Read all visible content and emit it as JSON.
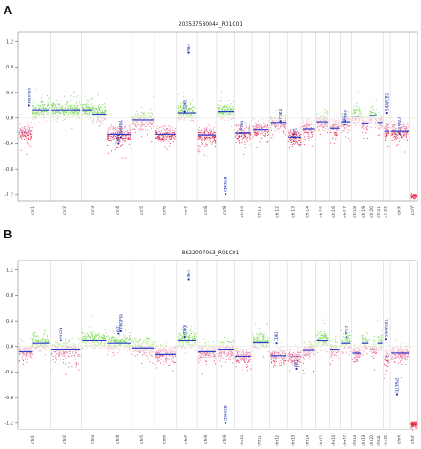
{
  "chart_data": [
    {
      "panel_letter": "A",
      "title": "203537580044_R01C01",
      "type": "scatter",
      "ylim": [
        -1.3,
        1.35
      ],
      "yticks": [
        "1.2",
        "0.8",
        "0.4",
        "0.0",
        "-0.4",
        "-0.8",
        "-1.2"
      ],
      "ytick_values": [
        1.2,
        0.8,
        0.4,
        0.0,
        -0.4,
        -0.8,
        -1.2
      ],
      "chromosomes": [
        "chr1",
        "chr2",
        "chr3",
        "chr4",
        "chr5",
        "chr6",
        "chr7",
        "chr8",
        "chr9",
        "chr10",
        "chr11",
        "chr12",
        "chr13",
        "chr14",
        "chr15",
        "chr16",
        "chr17",
        "chr18",
        "chr19",
        "chr20",
        "chr21",
        "chr22",
        "chrX",
        "chrY"
      ],
      "segments": [
        {
          "chr": "chr1",
          "part": "p",
          "value": -0.22
        },
        {
          "chr": "chr1",
          "part": "q",
          "value": 0.12
        },
        {
          "chr": "chr2",
          "value": 0.12
        },
        {
          "chr": "chr3",
          "part": "p",
          "value": 0.12
        },
        {
          "chr": "chr3",
          "part": "q",
          "value": 0.06
        },
        {
          "chr": "chr4",
          "value": -0.26
        },
        {
          "chr": "chr5",
          "value": -0.03
        },
        {
          "chr": "chr6",
          "value": -0.26
        },
        {
          "chr": "chr7",
          "value": 0.08
        },
        {
          "chr": "chr8",
          "value": -0.27
        },
        {
          "chr": "chr9",
          "value": 0.1
        },
        {
          "chr": "chr10",
          "value": -0.24
        },
        {
          "chr": "chr11",
          "value": -0.18
        },
        {
          "chr": "chr12",
          "value": -0.07
        },
        {
          "chr": "chr13",
          "value": -0.3
        },
        {
          "chr": "chr14",
          "value": -0.17
        },
        {
          "chr": "chr15",
          "value": -0.06
        },
        {
          "chr": "chr16",
          "value": -0.16
        },
        {
          "chr": "chr17",
          "value": -0.06
        },
        {
          "chr": "chr18",
          "value": 0.03
        },
        {
          "chr": "chr19",
          "value": -0.08
        },
        {
          "chr": "chr20",
          "value": 0.04
        },
        {
          "chr": "chr21",
          "value": -0.07
        },
        {
          "chr": "chr22",
          "value": -0.2
        },
        {
          "chr": "chrX",
          "value": -0.2
        },
        {
          "chr": "chrY",
          "value": -1.22
        }
      ],
      "gene_labels": [
        {
          "label": "PRDM16",
          "chr": "chr1",
          "value": 0.2
        },
        {
          "label": "PDGFRA",
          "chr": "chr4",
          "value": -0.3
        },
        {
          "label": "MYB",
          "chr": "chr4",
          "value": -0.4
        },
        {
          "label": "CDK6",
          "chr": "chr7",
          "value": 0.1
        },
        {
          "label": "MET",
          "chr": "chr7",
          "value": 1.02
        },
        {
          "label": "CDKN2B",
          "chr": "chr9",
          "value": -1.19
        },
        {
          "label": "PTEN",
          "chr": "chr10",
          "value": -0.22
        },
        {
          "label": "CDK4",
          "chr": "chr12",
          "value": -0.05
        },
        {
          "label": "RB1",
          "chr": "chr13",
          "value": -0.3
        },
        {
          "label": "TP53",
          "chr": "chr17",
          "value": -0.05
        },
        {
          "label": "NF1",
          "chr": "chr17",
          "value": -0.1
        },
        {
          "label": "SMARCB1",
          "chr": "chr22",
          "value": 0.08
        },
        {
          "label": "IL13RA2",
          "chr": "chrX",
          "value": -0.25
        }
      ]
    },
    {
      "panel_letter": "B",
      "title": "8622007063_R01C01",
      "type": "scatter",
      "ylim": [
        -1.3,
        1.35
      ],
      "yticks": [
        "1.2",
        "0.8",
        "0.4",
        "0.0",
        "-0.4",
        "-0.8",
        "-1.2"
      ],
      "ytick_values": [
        1.2,
        0.8,
        0.4,
        0.0,
        -0.4,
        -0.8,
        -1.2
      ],
      "chromosomes": [
        "chr1",
        "chr2",
        "chr3",
        "chr4",
        "chr5",
        "chr6",
        "chr7",
        "chr8",
        "chr9",
        "chr10",
        "chr11",
        "chr12",
        "chr13",
        "chr14",
        "chr15",
        "chr16",
        "chr17",
        "chr18",
        "chr19",
        "chr20",
        "chr21",
        "chr22",
        "chrX",
        "chrY"
      ],
      "segments": [
        {
          "chr": "chr1",
          "part": "p",
          "value": -0.08
        },
        {
          "chr": "chr1",
          "part": "q",
          "value": 0.05
        },
        {
          "chr": "chr2",
          "value": -0.05
        },
        {
          "chr": "chr3",
          "value": 0.1
        },
        {
          "chr": "chr4",
          "value": 0.05
        },
        {
          "chr": "chr5",
          "value": -0.02
        },
        {
          "chr": "chr6",
          "value": -0.12
        },
        {
          "chr": "chr7",
          "value": 0.1
        },
        {
          "chr": "chr8",
          "value": -0.08
        },
        {
          "chr": "chr9",
          "value": -0.05
        },
        {
          "chr": "chr10",
          "value": -0.15
        },
        {
          "chr": "chr11",
          "value": 0.06
        },
        {
          "chr": "chr12",
          "value": -0.14
        },
        {
          "chr": "chr13",
          "value": -0.16
        },
        {
          "chr": "chr14",
          "value": -0.06
        },
        {
          "chr": "chr15",
          "value": 0.1
        },
        {
          "chr": "chr16",
          "value": -0.05
        },
        {
          "chr": "chr17",
          "value": 0.05
        },
        {
          "chr": "chr18",
          "value": -0.1
        },
        {
          "chr": "chr19",
          "value": 0.05
        },
        {
          "chr": "chr20",
          "value": -0.04
        },
        {
          "chr": "chr21",
          "value": 0.05
        },
        {
          "chr": "chr22",
          "value": -0.16
        },
        {
          "chr": "chrX",
          "value": -0.1
        },
        {
          "chr": "chrY",
          "value": -1.22
        }
      ],
      "gene_labels": [
        {
          "label": "MYCN",
          "chr": "chr2",
          "value": 0.1
        },
        {
          "label": "PDGFRA",
          "chr": "chr4",
          "value": 0.25
        },
        {
          "label": "KIT",
          "chr": "chr4",
          "value": 0.2
        },
        {
          "label": "CDK6",
          "chr": "chr7",
          "value": 0.15
        },
        {
          "label": "MET",
          "chr": "chr7",
          "value": 1.05
        },
        {
          "label": "CDKN2B",
          "chr": "chr9",
          "value": -1.2
        },
        {
          "label": "CDK4",
          "chr": "chr12",
          "value": 0.05
        },
        {
          "label": "RB1",
          "chr": "chr13",
          "value": -0.35
        },
        {
          "label": "TP53",
          "chr": "chr17",
          "value": 0.15
        },
        {
          "label": "SMARCB1",
          "chr": "chr22",
          "value": 0.12
        },
        {
          "label": "IL13RA2",
          "chr": "chrX",
          "value": -0.75
        }
      ]
    }
  ]
}
